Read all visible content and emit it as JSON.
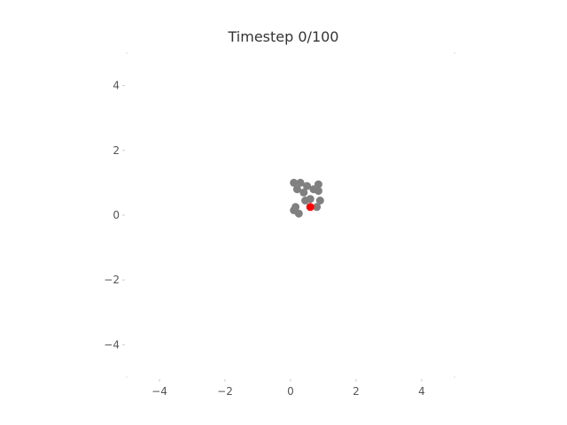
{
  "title": "Timestep 0/100",
  "chart_data": {
    "type": "scatter",
    "title": "Timestep 0/100",
    "xlim": [
      -5,
      5
    ],
    "ylim": [
      -5,
      5
    ],
    "xticks": [
      -4,
      -2,
      0,
      2,
      4
    ],
    "yticks": [
      -4,
      -2,
      0,
      2,
      4
    ],
    "xlabel": "",
    "ylabel": "",
    "grid": false,
    "series": [
      {
        "color": "#808080",
        "points": [
          [
            0.1,
            1.0
          ],
          [
            0.3,
            1.0
          ],
          [
            0.2,
            0.8
          ],
          [
            0.4,
            0.7
          ],
          [
            0.5,
            0.9
          ],
          [
            0.7,
            0.8
          ],
          [
            0.85,
            0.95
          ],
          [
            0.85,
            0.75
          ],
          [
            0.6,
            0.5
          ],
          [
            0.45,
            0.45
          ],
          [
            0.9,
            0.45
          ],
          [
            0.8,
            0.25
          ],
          [
            0.15,
            0.25
          ],
          [
            0.1,
            0.15
          ],
          [
            0.25,
            0.05
          ]
        ]
      },
      {
        "color": "#ff0000",
        "points": [
          [
            0.6,
            0.25
          ]
        ]
      }
    ]
  }
}
